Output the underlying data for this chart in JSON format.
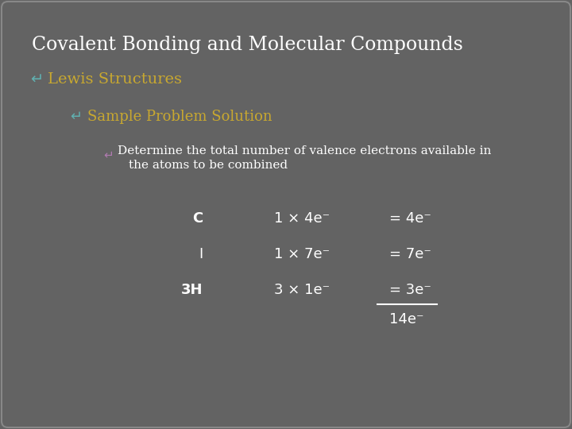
{
  "background_color": "#636363",
  "title": "Covalent Bonding and Molecular Compounds",
  "title_color": "#ffffff",
  "title_fontsize": 17,
  "bullet1_text": "Lewis Structures",
  "bullet1_color": "#c8a830",
  "bullet1_fontsize": 14,
  "bullet2_text": "Sample Problem Solution",
  "bullet2_color": "#c8a830",
  "bullet2_fontsize": 13,
  "bullet3_color": "#b07ab0",
  "bullet3_line1": "Determine the total number of valence electrons available in",
  "bullet3_line2": "the atoms to be combined",
  "bullet3_fontsize": 11,
  "text_color": "#ffffff",
  "table_fontsize": 13,
  "rows": [
    {
      "element": "C",
      "bold": true,
      "calc": "1 × 4e⁻",
      "result": "= 4e⁻",
      "underline": false
    },
    {
      "element": "I",
      "bold": false,
      "calc": "1 × 7e⁻",
      "result": "= 7e⁻",
      "underline": false
    },
    {
      "element": "3H",
      "bold": true,
      "calc": "3 × 1e⁻",
      "result": "= 3e⁻",
      "underline": true
    }
  ],
  "total_text": "14e⁻",
  "total_fontsize": 13
}
